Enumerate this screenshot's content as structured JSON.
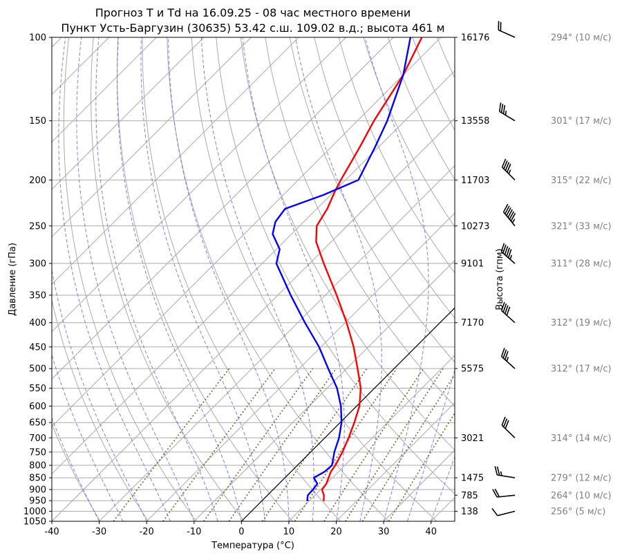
{
  "title": {
    "line1": "Прогноз T и Td на 16.09.25 - 08 час местного времени",
    "line2": "Пункт Усть-Баргузин (30635) 53.42 с.ш. 109.02 в.д.; высота 461 м"
  },
  "axes": {
    "xlabel": "Температура (°C)",
    "ylabel": "Давление (гПа)",
    "ylabel_right": "Высота (гпм)"
  },
  "colors": {
    "temperature": "#ff0000",
    "dewpoint": "#0000ff",
    "dry_adiabat": "#aaaaaa",
    "isotherm": "#aaaaaa",
    "moist_adiabat": "#6f6fff",
    "mixing_ratio": "#8b5a2b",
    "wind_label": "#808080",
    "barb": "#000000"
  },
  "chart_data": {
    "type": "line",
    "subtype": "skew-T log-p",
    "xlim": [
      -40,
      45
    ],
    "ylim": [
      1050,
      100
    ],
    "y_scale": "log",
    "x_ticks": [
      -40,
      -30,
      -20,
      -10,
      0,
      10,
      20,
      30,
      40
    ],
    "y_ticks": [
      100,
      150,
      200,
      250,
      300,
      350,
      400,
      450,
      500,
      550,
      600,
      650,
      700,
      750,
      800,
      850,
      900,
      950,
      1000,
      1050
    ],
    "height_ticks": [
      {
        "p": 100,
        "label": "16176"
      },
      {
        "p": 150,
        "label": "13558"
      },
      {
        "p": 200,
        "label": "11703"
      },
      {
        "p": 250,
        "label": "10273"
      },
      {
        "p": 300,
        "label": "9101"
      },
      {
        "p": 400,
        "label": "7170"
      },
      {
        "p": 500,
        "label": "5575"
      },
      {
        "p": 700,
        "label": "3021"
      },
      {
        "p": 850,
        "label": "1475"
      },
      {
        "p": 925,
        "label": "785"
      },
      {
        "p": 1000,
        "label": "138"
      }
    ],
    "grid": true,
    "series": [
      {
        "key": "temperature",
        "points": [
          [
            952,
            13.1
          ],
          [
            925,
            11.9
          ],
          [
            900,
            10.3
          ],
          [
            875,
            10.0
          ],
          [
            850,
            9.2
          ],
          [
            825,
            8.4
          ],
          [
            800,
            8.0
          ],
          [
            750,
            6.7
          ],
          [
            700,
            5.0
          ],
          [
            650,
            3.0
          ],
          [
            600,
            0.6
          ],
          [
            550,
            -2.9
          ],
          [
            500,
            -7.7
          ],
          [
            450,
            -13.1
          ],
          [
            400,
            -19.7
          ],
          [
            350,
            -27.6
          ],
          [
            300,
            -37.0
          ],
          [
            270,
            -43.2
          ],
          [
            250,
            -46.4
          ],
          [
            230,
            -47.8
          ],
          [
            210,
            -50.0
          ],
          [
            200,
            -51.0
          ],
          [
            170,
            -54.0
          ],
          [
            150,
            -56.5
          ],
          [
            120,
            -60.0
          ],
          [
            100,
            -64.0
          ]
        ]
      },
      {
        "key": "dewpoint",
        "points": [
          [
            952,
            9.6
          ],
          [
            925,
            8.5
          ],
          [
            900,
            8.4
          ],
          [
            875,
            8.1
          ],
          [
            850,
            6.1
          ],
          [
            825,
            7.1
          ],
          [
            800,
            7.3
          ],
          [
            750,
            5.0
          ],
          [
            700,
            3.0
          ],
          [
            650,
            0.3
          ],
          [
            600,
            -3.3
          ],
          [
            550,
            -7.9
          ],
          [
            500,
            -13.9
          ],
          [
            450,
            -20.4
          ],
          [
            400,
            -28.5
          ],
          [
            350,
            -37.3
          ],
          [
            300,
            -47.0
          ],
          [
            280,
            -49.3
          ],
          [
            260,
            -54.0
          ],
          [
            245,
            -56.0
          ],
          [
            230,
            -56.7
          ],
          [
            215,
            -51.5
          ],
          [
            200,
            -47.3
          ],
          [
            170,
            -50.8
          ],
          [
            150,
            -53.7
          ],
          [
            120,
            -60.0
          ],
          [
            100,
            -66.4
          ]
        ]
      }
    ],
    "wind": [
      {
        "p": 100,
        "dir": 294,
        "speed": 10,
        "label": "294° (10 м/с)"
      },
      {
        "p": 150,
        "dir": 301,
        "speed": 17,
        "label": "301° (17 м/с)"
      },
      {
        "p": 200,
        "dir": 315,
        "speed": 22,
        "label": "315° (22 м/с)"
      },
      {
        "p": 250,
        "dir": 321,
        "speed": 33,
        "label": "321° (33 м/с)"
      },
      {
        "p": 300,
        "dir": 311,
        "speed": 28,
        "label": "311° (28 м/с)"
      },
      {
        "p": 400,
        "dir": 312,
        "speed": 19,
        "label": "312° (19 м/с)"
      },
      {
        "p": 500,
        "dir": 312,
        "speed": 17,
        "label": "312° (17 м/с)"
      },
      {
        "p": 700,
        "dir": 314,
        "speed": 14,
        "label": "314° (14 м/с)"
      },
      {
        "p": 850,
        "dir": 279,
        "speed": 12,
        "label": "279° (12 м/с)"
      },
      {
        "p": 925,
        "dir": 264,
        "speed": 10,
        "label": "264° (10 м/с)"
      },
      {
        "p": 1000,
        "dir": 256,
        "speed": 5,
        "label": "256° (5 м/с)"
      }
    ]
  }
}
